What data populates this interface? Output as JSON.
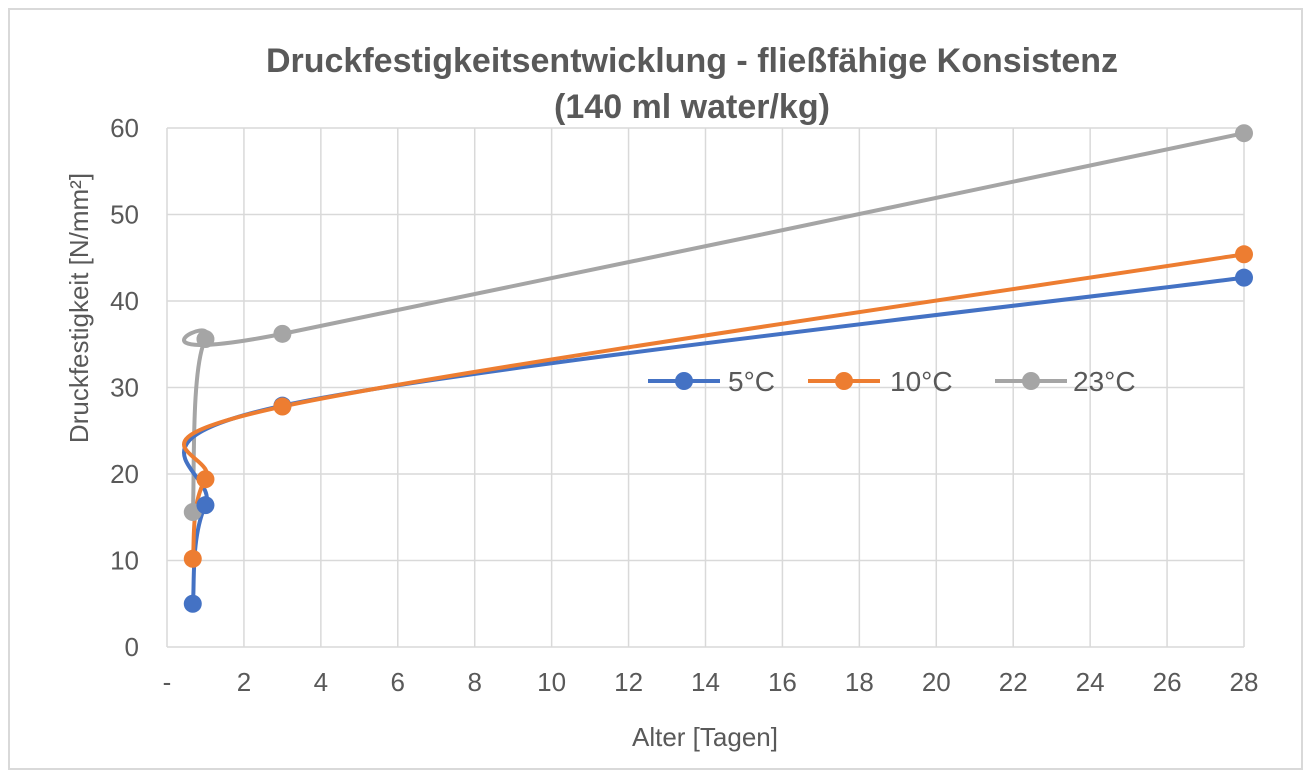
{
  "chart_data": {
    "type": "line",
    "title": "Druckfestigkeitsentwicklung - fließfähige Konsistenz",
    "subtitle": "(140 ml water/kg)",
    "xlabel": "Alter [Tagen]",
    "ylabel": "Druckfestigkeit [N/mm²]",
    "xlim": [
      0,
      28
    ],
    "ylim": [
      0,
      60
    ],
    "xticks": [
      0,
      2,
      4,
      6,
      8,
      10,
      12,
      14,
      16,
      18,
      20,
      22,
      24,
      26,
      28
    ],
    "xtick_labels": [
      "-",
      "2",
      "4",
      "6",
      "8",
      "10",
      "12",
      "14",
      "16",
      "18",
      "20",
      "22",
      "24",
      "26",
      "28"
    ],
    "yticks": [
      0,
      10,
      20,
      30,
      40,
      50,
      60
    ],
    "ytick_labels": [
      "0",
      "10",
      "20",
      "30",
      "40",
      "50",
      "60"
    ],
    "grid": true,
    "legend_position": "center-right",
    "series": [
      {
        "name": "5°C",
        "color": "#4472c4",
        "x": [
          0.67,
          1,
          3,
          28
        ],
        "y": [
          5.0,
          16.4,
          27.9,
          42.7
        ]
      },
      {
        "name": "10°C",
        "color": "#ed7d31",
        "x": [
          0.67,
          1,
          3,
          28
        ],
        "y": [
          10.2,
          19.4,
          27.8,
          45.4
        ]
      },
      {
        "name": "23°C",
        "color": "#a5a5a5",
        "x": [
          0.67,
          1,
          3,
          28
        ],
        "y": [
          15.6,
          35.6,
          36.2,
          59.4
        ]
      }
    ]
  }
}
